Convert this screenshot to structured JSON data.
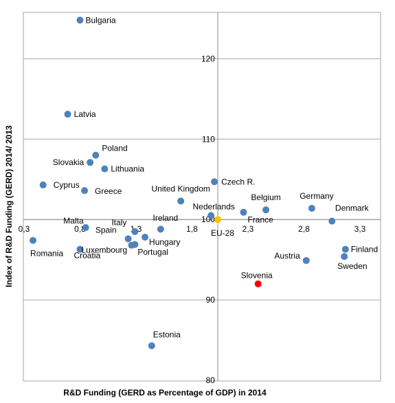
{
  "chart_data": {
    "type": "scatter",
    "xlabel": "R&D Funding  (GERD as Percentage of GDP) in 2014",
    "ylabel": "Index of R&D Funding (GERD) 2014/ 2013",
    "xlim": [
      0.3,
      3.4
    ],
    "ylim": [
      80,
      127
    ],
    "x_ticks": [
      0.3,
      0.8,
      1.3,
      1.8,
      2.3,
      2.8,
      3.3
    ],
    "x_tick_labels": [
      "0,3",
      "0,8",
      "1,3",
      "1,8",
      "2,3",
      "2,8",
      "3,3"
    ],
    "y_ticks": [
      80,
      90,
      100,
      110,
      120
    ],
    "y_tick_labels": [
      "80",
      "90",
      "100",
      "110",
      "120"
    ],
    "x_cross": 2.03,
    "y_cross": 100,
    "grid": true,
    "colors": {
      "default": "#4f81bd",
      "eu": "#ffc000",
      "highlight": "#ff0000",
      "highlight_text": "#ff0000",
      "eu_text": "#ffc000"
    },
    "points": [
      {
        "name": "Bulgaria",
        "x": 0.8,
        "y": 124.8
      },
      {
        "name": "Latvia",
        "x": 0.69,
        "y": 113.1
      },
      {
        "name": "Poland",
        "x": 0.94,
        "y": 108.0
      },
      {
        "name": "Slovakia",
        "x": 0.89,
        "y": 107.1
      },
      {
        "name": "Lithuania",
        "x": 1.02,
        "y": 106.3
      },
      {
        "name": "Cyprus",
        "x": 0.47,
        "y": 104.3
      },
      {
        "name": "Greece",
        "x": 0.84,
        "y": 103.6
      },
      {
        "name": "United Kingdom",
        "x": 1.7,
        "y": 102.3
      },
      {
        "name": "Czech R.",
        "x": 2.0,
        "y": 104.7
      },
      {
        "name": "Belgium",
        "x": 2.46,
        "y": 101.2
      },
      {
        "name": "Germany",
        "x": 2.87,
        "y": 101.4
      },
      {
        "name": "Denmark",
        "x": 3.05,
        "y": 99.8
      },
      {
        "name": "Nederlands",
        "x": 1.97,
        "y": 100.5
      },
      {
        "name": "France",
        "x": 2.26,
        "y": 100.9
      },
      {
        "name": "EU-28",
        "x": 2.03,
        "y": 100.0
      },
      {
        "name": "Malta",
        "x": 0.85,
        "y": 99.0
      },
      {
        "name": "Italy",
        "x": 1.29,
        "y": 98.5
      },
      {
        "name": "Ireland",
        "x": 1.52,
        "y": 98.8
      },
      {
        "name": "Spain",
        "x": 1.23,
        "y": 97.6
      },
      {
        "name": "Hungary",
        "x": 1.38,
        "y": 97.8
      },
      {
        "name": "Portugal",
        "x": 1.29,
        "y": 96.9
      },
      {
        "name": "Romania",
        "x": 0.38,
        "y": 97.4
      },
      {
        "name": "Luxembourg",
        "x": 0.8,
        "y": 96.3
      },
      {
        "name": "Croatia",
        "x": 1.26,
        "y": 96.8
      },
      {
        "name": "Austria",
        "x": 2.82,
        "y": 94.9
      },
      {
        "name": "Finland",
        "x": 3.17,
        "y": 96.3
      },
      {
        "name": "Sweden",
        "x": 3.16,
        "y": 95.4
      },
      {
        "name": "Slovenia",
        "x": 2.39,
        "y": 92.0
      },
      {
        "name": "Estonia",
        "x": 1.44,
        "y": 84.3
      }
    ]
  }
}
